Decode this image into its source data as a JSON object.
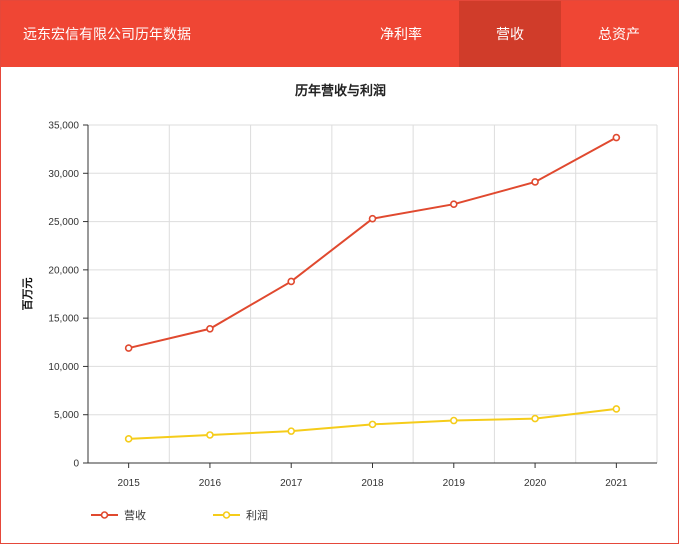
{
  "header": {
    "title": "远东宏信有限公司历年数据",
    "tabs": [
      {
        "label": "净利率",
        "active": false
      },
      {
        "label": "营收",
        "active": true
      },
      {
        "label": "总资产",
        "active": false
      }
    ]
  },
  "colors": {
    "header_bg": "#ef4634",
    "active_tab_bg": "#d03c2a",
    "revenue": "#e0492f",
    "profit": "#f5cc1a",
    "grid": "#dddddd"
  },
  "chart_data": {
    "type": "line",
    "title": "历年营收与利润",
    "xlabel": "",
    "ylabel": "百万元",
    "categories": [
      "2015",
      "2016",
      "2017",
      "2018",
      "2019",
      "2020",
      "2021"
    ],
    "ylim": [
      0,
      35000
    ],
    "yticks": [
      "0",
      "5,000",
      "10,000",
      "15,000",
      "20,000",
      "25,000",
      "30,000",
      "35,000"
    ],
    "grid": true,
    "legend_position": "bottom-left",
    "series": [
      {
        "name": "营收",
        "color": "#e0492f",
        "values": [
          11900,
          13900,
          18800,
          25300,
          26800,
          29100,
          33700
        ]
      },
      {
        "name": "利润",
        "color": "#f5cc1a",
        "values": [
          2500,
          2900,
          3300,
          4000,
          4400,
          4600,
          5600
        ]
      }
    ]
  }
}
